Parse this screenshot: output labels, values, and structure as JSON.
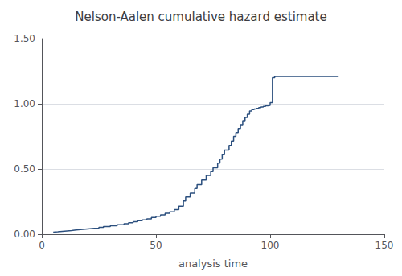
{
  "chart_data": {
    "type": "line",
    "line_style": "step",
    "title": "Nelson-Aalen cumulative hazard estimate",
    "xlabel": "analysis time",
    "color": "#2b4f7e",
    "grid": true,
    "xlim": [
      0,
      150
    ],
    "xticks": [
      0,
      50,
      100,
      150
    ],
    "ylim": [
      0,
      1.5
    ],
    "yticks": [
      {
        "value": 0,
        "label": "0.00"
      },
      {
        "value": 0.5,
        "label": "0.50"
      },
      {
        "value": 1,
        "label": "1.00"
      },
      {
        "value": 1.5,
        "label": "1.50"
      }
    ],
    "x": [
      5,
      7,
      9,
      11,
      13,
      15,
      17,
      19,
      21,
      23,
      25,
      27,
      30,
      33,
      36,
      38,
      40,
      42,
      44,
      46,
      48,
      50,
      52,
      54,
      56,
      58,
      60,
      62,
      63,
      65,
      67,
      68,
      70,
      72,
      74,
      75,
      77,
      78,
      79,
      80,
      82,
      83,
      84,
      85,
      86,
      87,
      88,
      89,
      90,
      91,
      92,
      93,
      94,
      95,
      96,
      97,
      98,
      99,
      100,
      101,
      102,
      105,
      130
    ],
    "values": [
      0.015,
      0.018,
      0.022,
      0.025,
      0.028,
      0.032,
      0.035,
      0.038,
      0.041,
      0.044,
      0.047,
      0.052,
      0.058,
      0.065,
      0.072,
      0.08,
      0.088,
      0.095,
      0.103,
      0.11,
      0.118,
      0.128,
      0.138,
      0.148,
      0.16,
      0.172,
      0.188,
      0.215,
      0.255,
      0.285,
      0.315,
      0.35,
      0.38,
      0.415,
      0.45,
      0.48,
      0.51,
      0.545,
      0.575,
      0.61,
      0.645,
      0.68,
      0.715,
      0.75,
      0.78,
      0.81,
      0.84,
      0.87,
      0.895,
      0.92,
      0.945,
      0.955,
      0.96,
      0.965,
      0.97,
      0.975,
      0.98,
      0.985,
      0.988,
      1.01,
      1.2,
      1.21,
      1.21
    ]
  }
}
